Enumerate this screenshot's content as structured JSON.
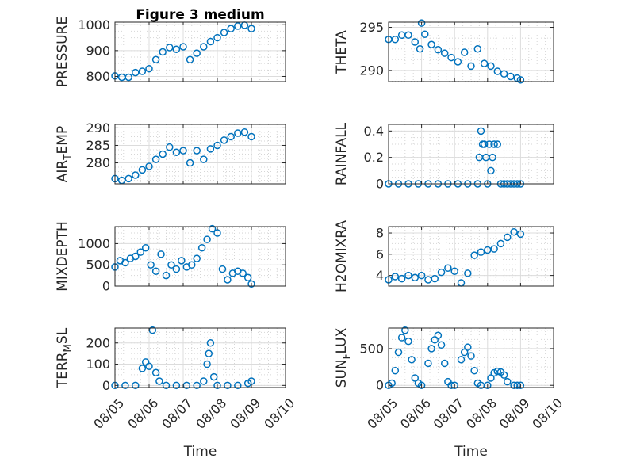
{
  "figure": {
    "title": "Figure 3 medium",
    "marker_color": "#0072bd",
    "x_axis_label": "Time"
  },
  "chart_data": [
    {
      "type": "scatter",
      "ylabel": "PRESSURE",
      "xlim": [
        "08/05",
        "08/10"
      ],
      "xticks": [
        "08/05",
        "08/06",
        "08/07",
        "08/08",
        "08/09",
        "08/10"
      ],
      "ylim": [
        780,
        1010
      ],
      "yticks": [
        800,
        900,
        1000
      ],
      "grid": true,
      "x": [
        0.0,
        0.2,
        0.4,
        0.6,
        0.8,
        1.0,
        1.2,
        1.4,
        1.6,
        1.8,
        2.0,
        2.2,
        2.4,
        2.6,
        2.8,
        3.0,
        3.2,
        3.4,
        3.6,
        3.8,
        4.0
      ],
      "y": [
        802,
        797,
        797,
        815,
        820,
        830,
        865,
        895,
        912,
        905,
        915,
        865,
        890,
        915,
        935,
        950,
        970,
        985,
        995,
        998,
        985
      ]
    },
    {
      "type": "scatter",
      "ylabel": "THETA",
      "xlim": [
        "08/05",
        "08/10"
      ],
      "xticks": [
        "08/05",
        "08/06",
        "08/07",
        "08/08",
        "08/09",
        "08/10"
      ],
      "ylim": [
        288.7,
        295.6
      ],
      "yticks": [
        290,
        295
      ],
      "grid": true,
      "x": [
        0.0,
        0.2,
        0.4,
        0.6,
        0.8,
        0.95,
        1.0,
        1.1,
        1.3,
        1.5,
        1.7,
        1.9,
        2.1,
        2.3,
        2.5,
        2.7,
        2.9,
        3.1,
        3.3,
        3.5,
        3.7,
        3.9,
        4.0
      ],
      "y": [
        293.6,
        293.6,
        294.1,
        294.1,
        293.3,
        292.5,
        295.5,
        294.2,
        293.0,
        292.4,
        292.0,
        291.5,
        291.0,
        292.1,
        290.5,
        292.5,
        290.8,
        290.5,
        289.9,
        289.6,
        289.3,
        289.1,
        288.9
      ]
    },
    {
      "type": "scatter",
      "ylabel": "AIR_TEMP",
      "xlim": [
        "08/05",
        "08/10"
      ],
      "xticks": [
        "08/05",
        "08/06",
        "08/07",
        "08/08",
        "08/09",
        "08/10"
      ],
      "ylim": [
        274,
        291
      ],
      "yticks": [
        280,
        285,
        290
      ],
      "grid": true,
      "x": [
        0.0,
        0.2,
        0.4,
        0.6,
        0.8,
        1.0,
        1.2,
        1.4,
        1.6,
        1.8,
        2.0,
        2.2,
        2.4,
        2.6,
        2.8,
        3.0,
        3.2,
        3.4,
        3.6,
        3.8,
        4.0
      ],
      "y": [
        275.5,
        275,
        275.5,
        276.5,
        278,
        279,
        281,
        282.5,
        284.5,
        283,
        283.5,
        280,
        283.5,
        281,
        284,
        285,
        286.5,
        287.5,
        288.5,
        288.8,
        287.5
      ]
    },
    {
      "type": "scatter",
      "ylabel": "RAINFALL",
      "xlim": [
        "08/05",
        "08/10"
      ],
      "xticks": [
        "08/05",
        "08/06",
        "08/07",
        "08/08",
        "08/09",
        "08/10"
      ],
      "ylim": [
        0,
        0.45
      ],
      "yticks": [
        0,
        0.2,
        0.4
      ],
      "grid": true,
      "x": [
        0.0,
        0.3,
        0.6,
        0.9,
        1.2,
        1.5,
        1.8,
        2.1,
        2.4,
        2.7,
        2.75,
        2.8,
        2.85,
        2.9,
        2.95,
        3.0,
        3.05,
        3.1,
        3.15,
        3.2,
        3.3,
        3.4,
        3.5,
        3.6,
        3.7,
        3.8,
        3.9,
        4.0
      ],
      "y": [
        0,
        0,
        0,
        0,
        0,
        0,
        0,
        0,
        0,
        0,
        0.2,
        0.4,
        0.3,
        0.3,
        0.2,
        0,
        0.3,
        0.1,
        0.2,
        0.3,
        0.3,
        0,
        0,
        0,
        0,
        0,
        0,
        0
      ]
    },
    {
      "type": "scatter",
      "ylabel": "MIXDEPTH",
      "xlim": [
        "08/05",
        "08/10"
      ],
      "xticks": [
        "08/05",
        "08/06",
        "08/07",
        "08/08",
        "08/09",
        "08/10"
      ],
      "ylim": [
        0,
        1400
      ],
      "yticks": [
        0,
        500,
        1000
      ],
      "grid": true,
      "x": [
        0.0,
        0.15,
        0.3,
        0.45,
        0.6,
        0.75,
        0.9,
        1.05,
        1.2,
        1.35,
        1.5,
        1.65,
        1.8,
        1.95,
        2.1,
        2.25,
        2.4,
        2.55,
        2.7,
        2.85,
        3.0,
        3.15,
        3.3,
        3.45,
        3.6,
        3.75,
        3.9,
        4.0
      ],
      "y": [
        450,
        600,
        550,
        650,
        700,
        800,
        900,
        500,
        350,
        750,
        250,
        500,
        400,
        600,
        450,
        500,
        650,
        900,
        1100,
        1350,
        1250,
        400,
        150,
        300,
        350,
        300,
        200,
        50
      ]
    },
    {
      "type": "scatter",
      "ylabel": "H2OMIXRA",
      "xlim": [
        "08/05",
        "08/10"
      ],
      "xticks": [
        "08/05",
        "08/06",
        "08/07",
        "08/08",
        "08/09",
        "08/10"
      ],
      "ylim": [
        3,
        8.6
      ],
      "yticks": [
        4,
        6,
        8
      ],
      "grid": true,
      "x": [
        0.0,
        0.2,
        0.4,
        0.6,
        0.8,
        1.0,
        1.2,
        1.4,
        1.6,
        1.8,
        2.0,
        2.2,
        2.4,
        2.6,
        2.8,
        3.0,
        3.2,
        3.4,
        3.6,
        3.8,
        4.0
      ],
      "y": [
        3.6,
        3.9,
        3.7,
        4.0,
        3.8,
        4.0,
        3.6,
        3.7,
        4.3,
        4.7,
        4.4,
        3.3,
        4.2,
        5.9,
        6.2,
        6.4,
        6.5,
        7.0,
        7.6,
        8.1,
        7.9
      ]
    },
    {
      "type": "scatter",
      "ylabel": "TERR_MSL",
      "xlim": [
        "08/05",
        "08/10"
      ],
      "xticks": [
        "08/05",
        "08/06",
        "08/07",
        "08/08",
        "08/09",
        "08/10"
      ],
      "ylim": [
        -10,
        270
      ],
      "yticks": [
        0,
        100,
        200
      ],
      "grid": true,
      "x": [
        0.0,
        0.3,
        0.6,
        0.8,
        0.9,
        1.0,
        1.1,
        1.2,
        1.3,
        1.5,
        1.8,
        2.1,
        2.4,
        2.6,
        2.7,
        2.75,
        2.8,
        2.9,
        3.0,
        3.3,
        3.6,
        3.9,
        4.0
      ],
      "y": [
        0,
        0,
        0,
        80,
        110,
        90,
        260,
        60,
        20,
        0,
        0,
        0,
        0,
        20,
        100,
        150,
        200,
        40,
        0,
        0,
        0,
        10,
        20
      ]
    },
    {
      "type": "scatter",
      "ylabel": "SUN_FLUX",
      "xlim": [
        "08/05",
        "08/10"
      ],
      "xticks": [
        "08/05",
        "08/06",
        "08/07",
        "08/08",
        "08/09",
        "08/10"
      ],
      "ylim": [
        -30,
        780
      ],
      "yticks": [
        0,
        500
      ],
      "grid": true,
      "x": [
        0.0,
        0.1,
        0.2,
        0.3,
        0.4,
        0.5,
        0.6,
        0.7,
        0.8,
        0.9,
        1.0,
        1.2,
        1.3,
        1.4,
        1.5,
        1.6,
        1.7,
        1.8,
        1.9,
        2.0,
        2.2,
        2.3,
        2.4,
        2.5,
        2.6,
        2.7,
        2.8,
        3.0,
        3.1,
        3.2,
        3.3,
        3.4,
        3.5,
        3.6,
        3.8,
        3.9,
        4.0
      ],
      "y": [
        0,
        30,
        200,
        450,
        650,
        750,
        600,
        350,
        100,
        30,
        0,
        300,
        500,
        620,
        680,
        550,
        300,
        50,
        0,
        0,
        350,
        450,
        520,
        400,
        200,
        30,
        0,
        0,
        100,
        170,
        190,
        180,
        140,
        50,
        0,
        0,
        0
      ]
    }
  ]
}
